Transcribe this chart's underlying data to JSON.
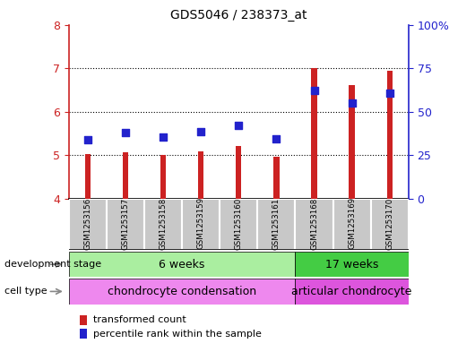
{
  "title": "GDS5046 / 238373_at",
  "samples": [
    "GSM1253156",
    "GSM1253157",
    "GSM1253158",
    "GSM1253159",
    "GSM1253160",
    "GSM1253161",
    "GSM1253168",
    "GSM1253169",
    "GSM1253170"
  ],
  "transformed_count": [
    5.02,
    5.06,
    5.0,
    5.1,
    5.22,
    4.97,
    7.0,
    6.62,
    6.95
  ],
  "percentile_rank_left": [
    5.35,
    5.52,
    5.42,
    5.55,
    5.68,
    5.38,
    6.48,
    6.2,
    6.42
  ],
  "ylim_left": [
    4,
    8
  ],
  "ylim_right": [
    0,
    100
  ],
  "y_ticks_left": [
    4,
    5,
    6,
    7,
    8
  ],
  "y_ticks_right": [
    0,
    25,
    50,
    75,
    100
  ],
  "bar_color": "#cc2222",
  "dot_color": "#2222cc",
  "bar_bottom": 4.0,
  "bar_width": 0.15,
  "dot_size": 40,
  "development_stage_groups": [
    {
      "label": "6 weeks",
      "start": 0,
      "end": 6,
      "color": "#aaeea0"
    },
    {
      "label": "17 weeks",
      "start": 6,
      "end": 9,
      "color": "#44cc44"
    }
  ],
  "cell_type_groups": [
    {
      "label": "chondrocyte condensation",
      "start": 0,
      "end": 6,
      "color": "#ee88ee"
    },
    {
      "label": "articular chondrocyte",
      "start": 6,
      "end": 9,
      "color": "#dd55dd"
    }
  ],
  "gray_box_color": "#c8c8c8",
  "gray_box_sep_color": "#ffffff",
  "row_label_dev": "development stage",
  "row_label_cell": "cell type",
  "legend_bar_label": "transformed count",
  "legend_dot_label": "percentile rank within the sample",
  "axis_color_left": "#cc2222",
  "axis_color_right": "#2222cc",
  "background_color": "#ffffff",
  "plot_bg": "#ffffff",
  "border_color": "#000000",
  "dotted_line_color": "#000000",
  "dotted_lines_at": [
    5,
    6,
    7
  ],
  "fig_width": 5.3,
  "fig_height": 3.93,
  "dpi": 100
}
